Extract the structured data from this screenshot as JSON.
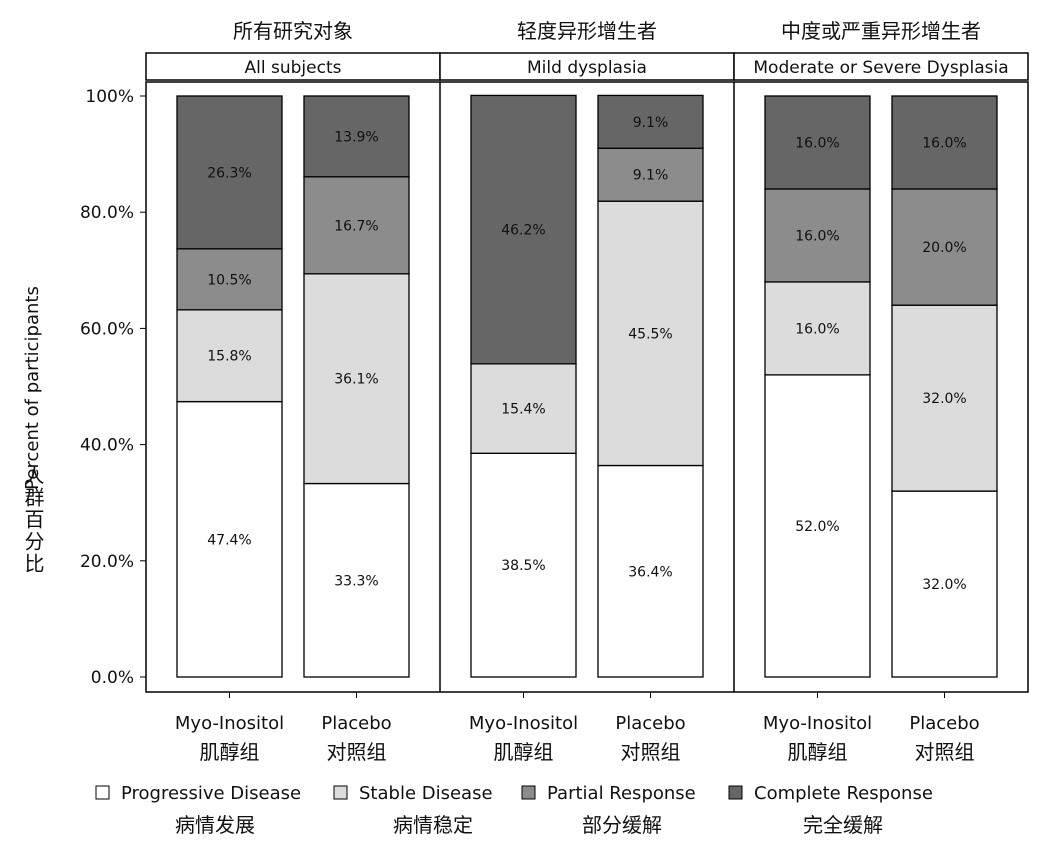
{
  "chart_data": {
    "type": "bar",
    "stacked": true,
    "ylabel": "Percent of participants",
    "ylabel_cn": "人群百分比",
    "ylim": [
      0,
      100
    ],
    "yticks": [
      "0.0%",
      "20.0%",
      "40.0%",
      "60.0%",
      "80.0%",
      "100%"
    ],
    "grid": false,
    "legend_placement": "bottom",
    "panels": [
      {
        "title_cn": "所有研究对象",
        "title": "All subjects",
        "groups": [
          {
            "label": "Myo-Inositol",
            "label_cn": "肌醇组",
            "values": [
              47.4,
              15.8,
              10.5,
              26.3
            ]
          },
          {
            "label": "Placebo",
            "label_cn": "对照组",
            "values": [
              33.3,
              36.1,
              16.7,
              13.9
            ]
          }
        ]
      },
      {
        "title_cn": "轻度异形增生者",
        "title": "Mild dysplasia",
        "groups": [
          {
            "label": "Myo-Inositol",
            "label_cn": "肌醇组",
            "values": [
              38.5,
              15.4,
              0,
              46.2
            ]
          },
          {
            "label": "Placebo",
            "label_cn": "对照组",
            "values": [
              36.4,
              45.5,
              9.1,
              9.1
            ]
          }
        ]
      },
      {
        "title_cn": "中度或严重异形增生者",
        "title": "Moderate or Severe Dysplasia",
        "groups": [
          {
            "label": "Myo-Inositol",
            "label_cn": "肌醇组",
            "values": [
              52.0,
              16.0,
              16.0,
              16.0
            ]
          },
          {
            "label": "Placebo",
            "label_cn": "对照组",
            "values": [
              32.0,
              32.0,
              20.0,
              16.0
            ]
          }
        ]
      }
    ],
    "series": [
      {
        "name": "Progressive Disease",
        "name_cn": "病情发展",
        "color": "#ffffff"
      },
      {
        "name": "Stable Disease",
        "name_cn": "病情稳定",
        "color": "#dcdcdc"
      },
      {
        "name": "Partial Response",
        "name_cn": "部分缓解",
        "color": "#8c8c8c"
      },
      {
        "name": "Complete Response",
        "name_cn": "完全缓解",
        "color": "#666666"
      }
    ]
  }
}
